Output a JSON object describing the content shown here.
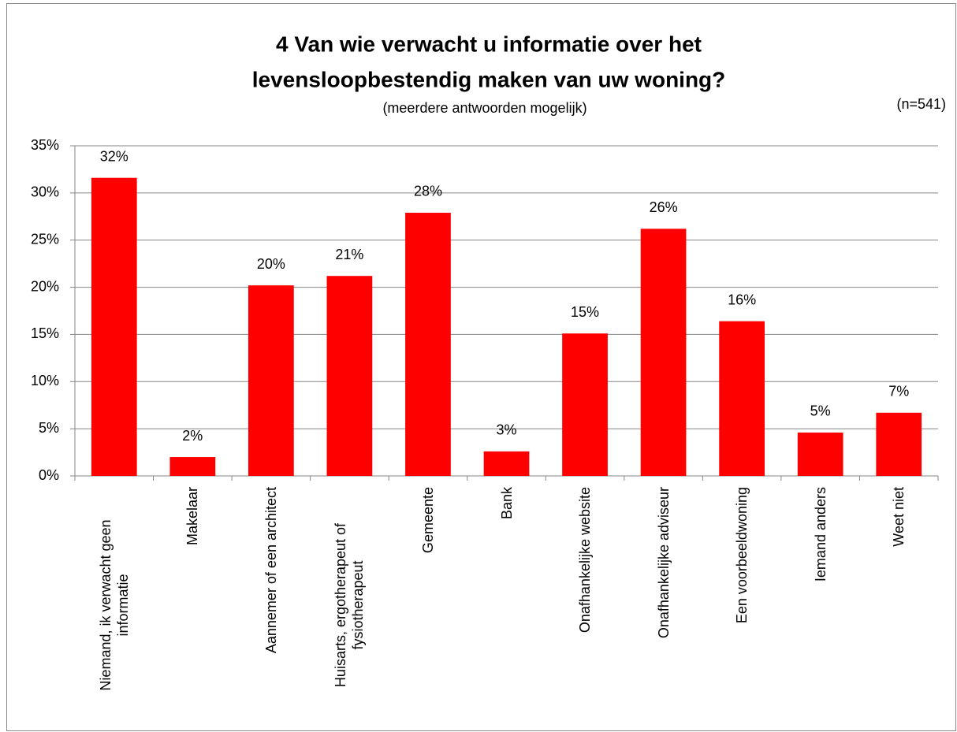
{
  "chart_data": {
    "type": "bar",
    "title": [
      "4 Van wie verwacht u informatie over het",
      "levensloopbestendig maken van uw woning?"
    ],
    "subtitle": "(meerdere antwoorden mogelijk)",
    "annotation": "(n=541)",
    "categories": [
      "Niemand, ik verwacht geen informatie",
      "Makelaar",
      "Aannemer of een architect",
      "Huisarts, ergotherapeut of fysiotherapeut",
      "Gemeente",
      "Bank",
      "Onafhankelijke website",
      "Onafhankelijke adviseur",
      "Een voorbeeldwoning",
      "Iemand anders",
      "Weet niet"
    ],
    "values": [
      31.6,
      2.0,
      20.2,
      21.2,
      27.9,
      2.6,
      15.1,
      26.2,
      16.4,
      4.6,
      6.7
    ],
    "value_labels": [
      "32%",
      "2%",
      "20%",
      "21%",
      "28%",
      "3%",
      "15%",
      "26%",
      "16%",
      "5%",
      "7%"
    ],
    "color": "#ff0000",
    "ylim": [
      0,
      35
    ],
    "yticks": [
      {
        "value": 0,
        "label": "0%"
      },
      {
        "value": 5,
        "label": "5%"
      },
      {
        "value": 10,
        "label": "10%"
      },
      {
        "value": 15,
        "label": "15%"
      },
      {
        "value": 20,
        "label": "20%"
      },
      {
        "value": 25,
        "label": "25%"
      },
      {
        "value": 30,
        "label": "30%"
      },
      {
        "value": 35,
        "label": "35%"
      }
    ],
    "grid": true
  }
}
